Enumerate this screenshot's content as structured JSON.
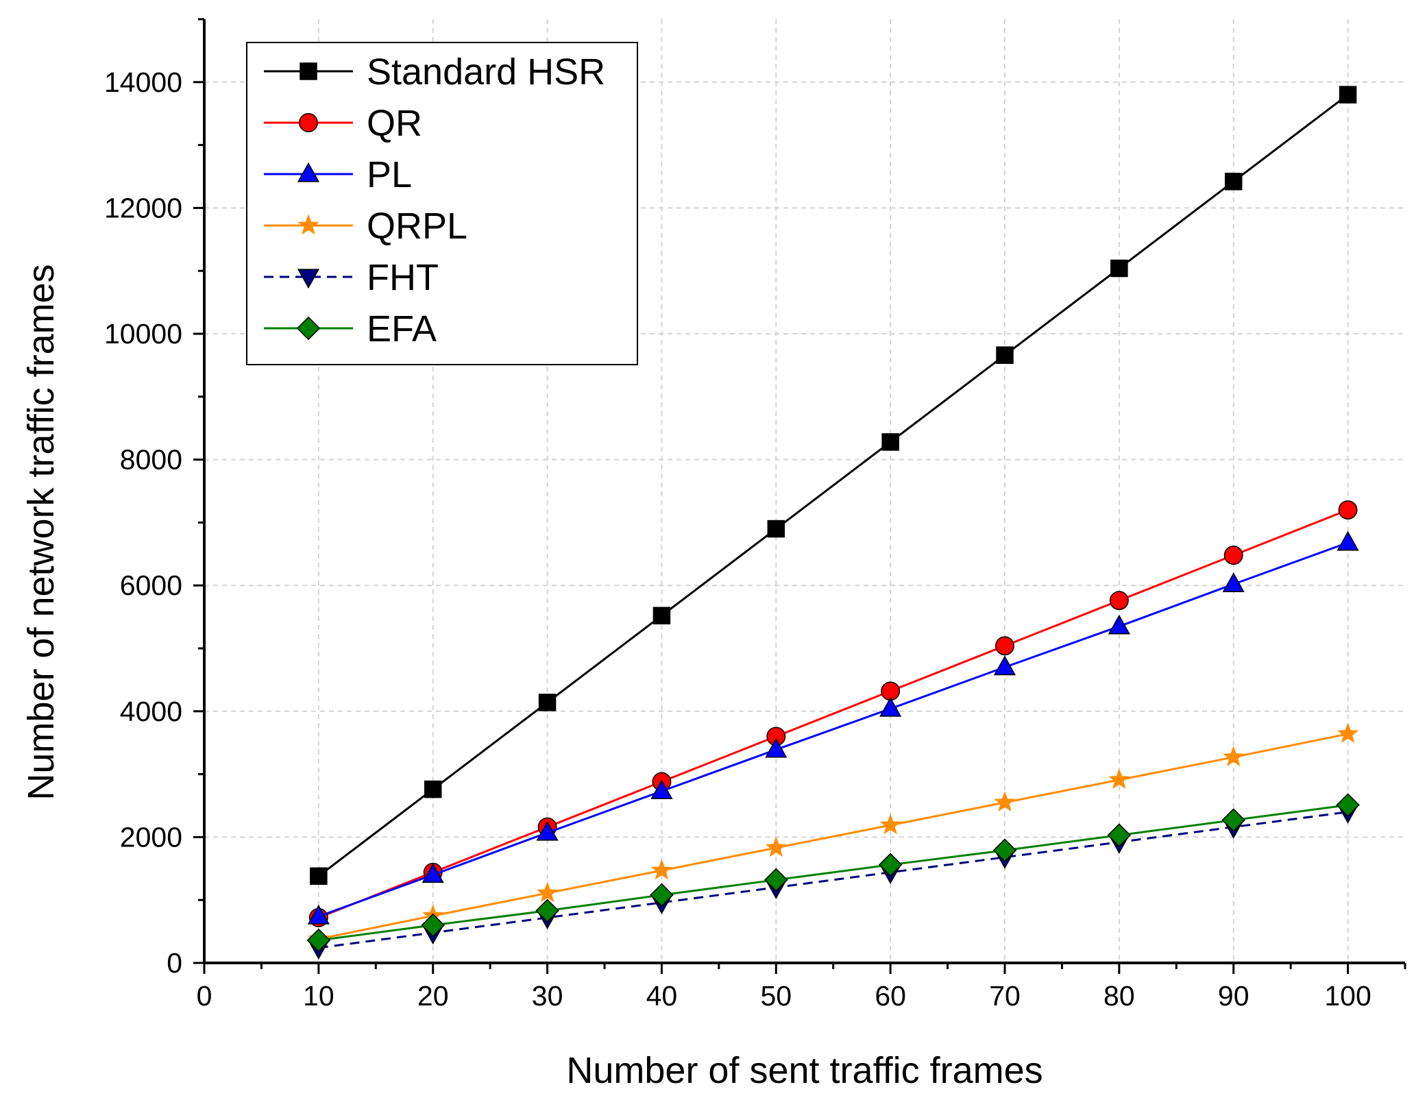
{
  "chart_data": {
    "type": "line",
    "title": "",
    "xlabel": "Number of sent traffic frames",
    "ylabel": "Number of network traffic frames",
    "xlim": [
      0,
      105
    ],
    "ylim": [
      0,
      15000
    ],
    "xticks": [
      0,
      10,
      20,
      30,
      40,
      50,
      60,
      70,
      80,
      90,
      100
    ],
    "yticks": [
      0,
      2000,
      4000,
      6000,
      8000,
      10000,
      12000,
      14000
    ],
    "grid": true,
    "legend_position": "top-left",
    "x": [
      10,
      20,
      30,
      40,
      50,
      60,
      70,
      80,
      90,
      100
    ],
    "series": [
      {
        "name": "Standard HSR",
        "color": "#000000",
        "marker": "square",
        "dash": "solid",
        "values": [
          1380,
          2760,
          4140,
          5520,
          6900,
          8280,
          9660,
          11040,
          12420,
          13800
        ]
      },
      {
        "name": "QR",
        "color": "#ff0000",
        "marker": "circle",
        "dash": "solid",
        "values": [
          720,
          1440,
          2160,
          2880,
          3600,
          4320,
          5040,
          5760,
          6480,
          7200
        ]
      },
      {
        "name": "PL",
        "color": "#0000ff",
        "marker": "triangle-up",
        "dash": "solid",
        "values": [
          740,
          1400,
          2070,
          2730,
          3390,
          4040,
          4700,
          5350,
          6020,
          6680
        ]
      },
      {
        "name": "QRPL",
        "color": "#ff8c00",
        "marker": "star",
        "dash": "solid",
        "values": [
          380,
          750,
          1110,
          1470,
          1830,
          2190,
          2550,
          2910,
          3270,
          3640
        ]
      },
      {
        "name": "FHT",
        "color": "#00007f",
        "marker": "triangle-down",
        "dash": "dashed",
        "values": [
          240,
          480,
          720,
          960,
          1200,
          1440,
          1680,
          1920,
          2160,
          2400
        ]
      },
      {
        "name": "EFA",
        "color": "#008000",
        "marker": "diamond",
        "dash": "solid",
        "values": [
          360,
          600,
          830,
          1080,
          1320,
          1560,
          1790,
          2030,
          2270,
          2510
        ]
      }
    ]
  }
}
